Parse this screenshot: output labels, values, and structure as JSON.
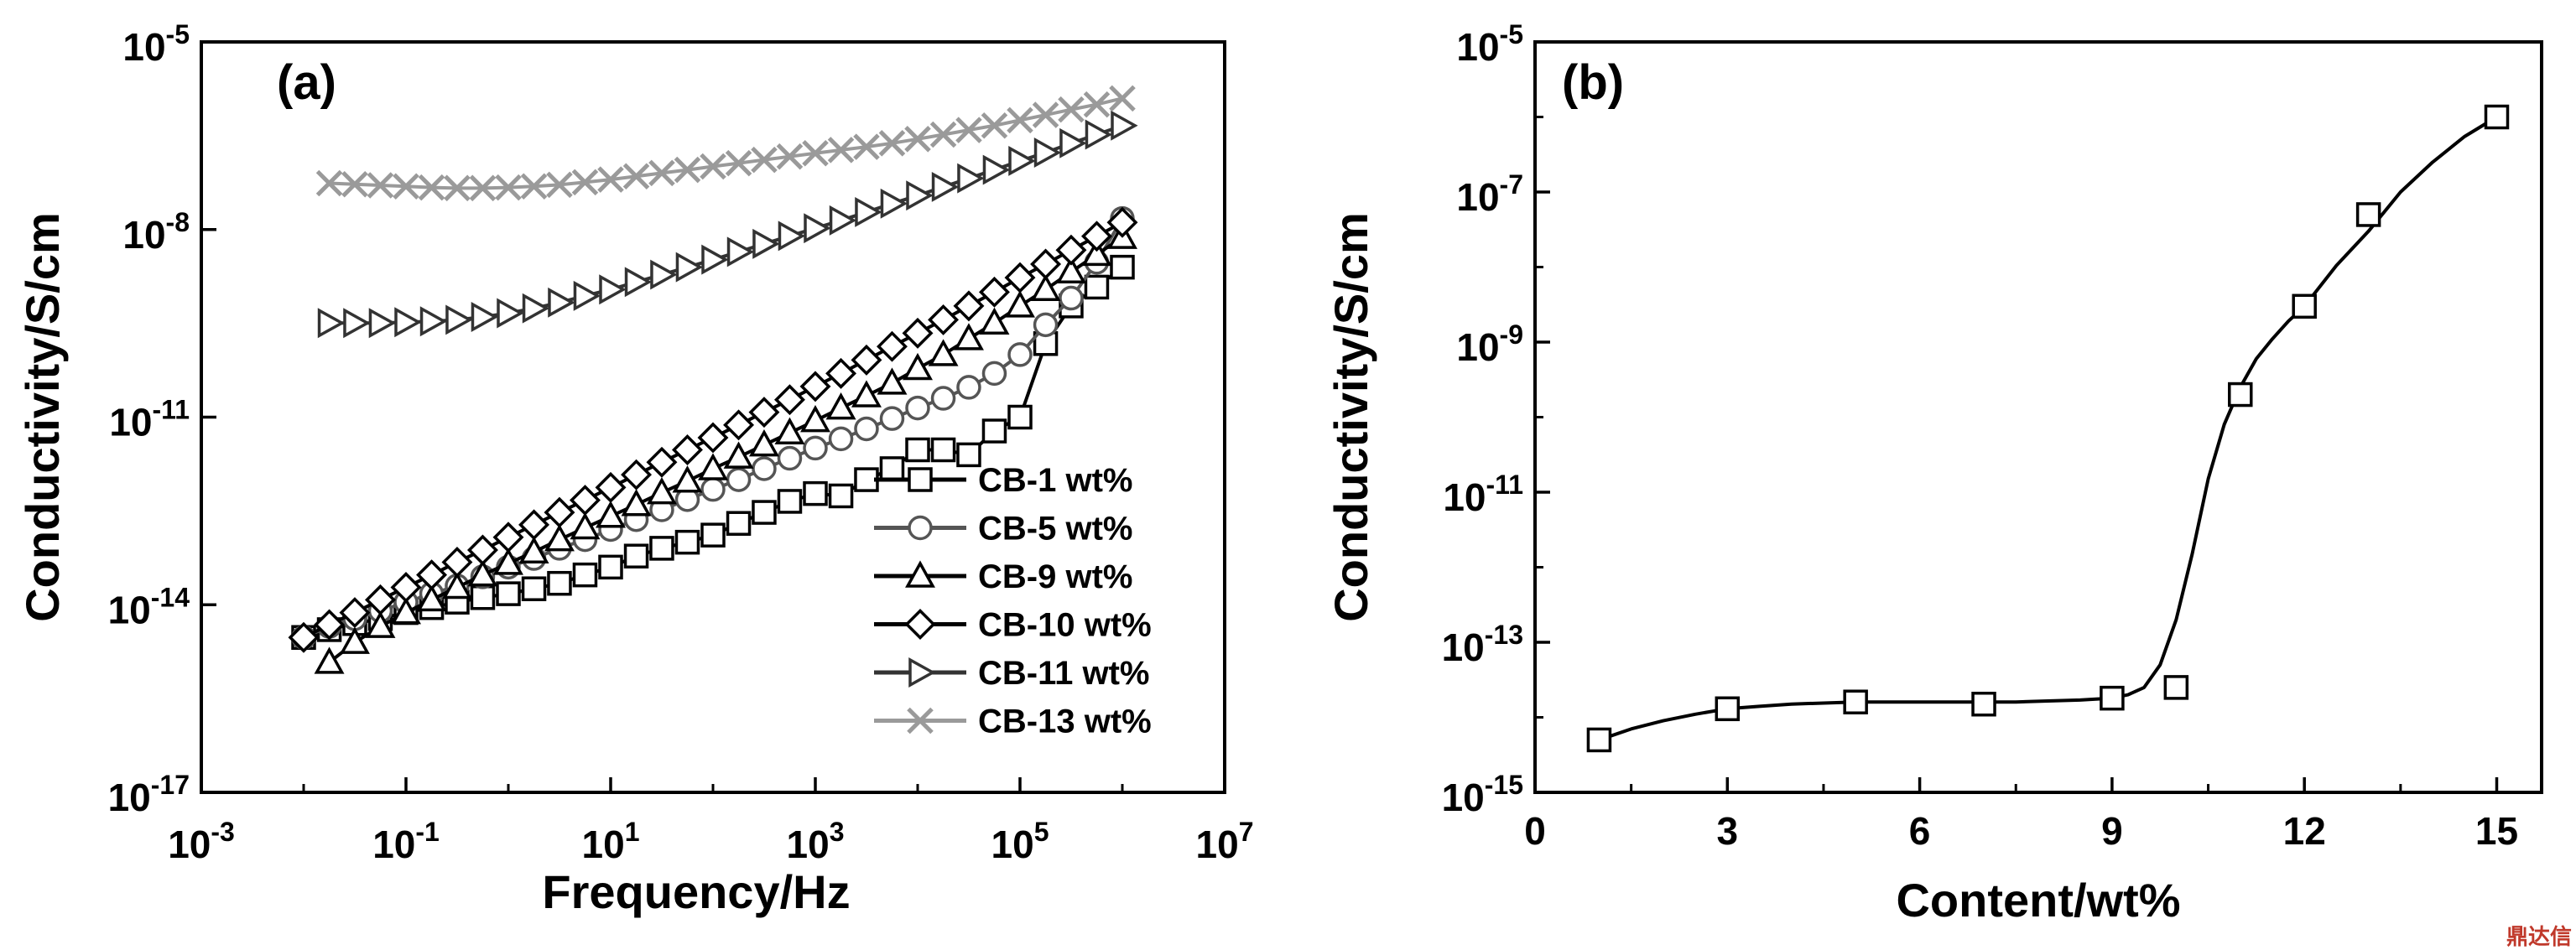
{
  "chart_data": [
    {
      "type": "line",
      "panel_label": "(a)",
      "xlabel": "Frequency/Hz",
      "ylabel": "Conductivity/S/cm",
      "x_scale": "log",
      "y_scale": "log",
      "xlim": [
        0.001,
        10000000
      ],
      "ylim": [
        1e-17,
        1e-05
      ],
      "x_ticks": [
        {
          "value": 0.001,
          "base": "10",
          "exp": "-3"
        },
        {
          "value": 0.1,
          "base": "10",
          "exp": "-1"
        },
        {
          "value": 10,
          "base": "10",
          "exp": "1"
        },
        {
          "value": 1000,
          "base": "10",
          "exp": "3"
        },
        {
          "value": 100000,
          "base": "10",
          "exp": "5"
        },
        {
          "value": 10000000,
          "base": "10",
          "exp": "7"
        }
      ],
      "y_ticks": [
        {
          "value": 1e-17,
          "base": "10",
          "exp": "-17"
        },
        {
          "value": 1e-14,
          "base": "10",
          "exp": "-14"
        },
        {
          "value": 1e-11,
          "base": "10",
          "exp": "-11"
        },
        {
          "value": 1e-08,
          "base": "10",
          "exp": "-8"
        },
        {
          "value": 1e-05,
          "base": "10",
          "exp": "-5"
        }
      ],
      "legend_position": "bottom-right",
      "series": [
        {
          "name": "CB-1 wt%",
          "marker": "square",
          "color": "#000000",
          "x": [
            0.01,
            0.0178,
            0.0316,
            0.0562,
            0.1,
            0.178,
            0.316,
            0.562,
            1,
            1.78,
            3.16,
            5.62,
            10,
            17.8,
            31.6,
            56.2,
            100,
            178,
            316,
            562,
            1000,
            1780,
            3160,
            5620,
            10000,
            17800,
            31600,
            56200,
            100000,
            178000,
            316000,
            562000,
            1000000
          ],
          "y": [
            3e-15,
            4e-15,
            5e-15,
            6e-15,
            7.5e-15,
            9e-15,
            1.1e-14,
            1.3e-14,
            1.5e-14,
            1.8e-14,
            2.2e-14,
            3e-14,
            4e-14,
            6e-14,
            8e-14,
            1e-13,
            1.3e-13,
            2e-13,
            3e-13,
            4.5e-13,
            6e-13,
            5.5e-13,
            1e-12,
            1.5e-12,
            3e-12,
            3e-12,
            2.5e-12,
            6e-12,
            1e-11,
            1.5e-10,
            6e-10,
            1.2e-09,
            2.5e-09
          ]
        },
        {
          "name": "CB-5 wt%",
          "marker": "circle",
          "color": "#555555",
          "x": [
            0.01,
            0.0178,
            0.0316,
            0.0562,
            0.1,
            0.178,
            0.316,
            0.562,
            1,
            1.78,
            3.16,
            5.62,
            10,
            17.8,
            31.6,
            56.2,
            100,
            178,
            316,
            562,
            1000,
            1780,
            3160,
            5620,
            10000,
            17800,
            31600,
            56200,
            100000,
            178000,
            316000,
            562000,
            1000000
          ],
          "y": [
            3e-15,
            4.5e-15,
            6e-15,
            8e-15,
            1.1e-14,
            1.5e-14,
            2e-14,
            2.8e-14,
            4e-14,
            5.5e-14,
            8e-14,
            1.1e-13,
            1.6e-13,
            2.3e-13,
            3.3e-13,
            4.8e-13,
            7e-13,
            1e-12,
            1.5e-12,
            2.2e-12,
            3.2e-12,
            4.5e-12,
            6.5e-12,
            9.5e-12,
            1.4e-11,
            2e-11,
            3e-11,
            5e-11,
            1e-10,
            3e-10,
            8e-10,
            3e-09,
            1.5e-08
          ]
        },
        {
          "name": "CB-9 wt%",
          "marker": "triangle-up",
          "color": "#000000",
          "x": [
            0.0178,
            0.0316,
            0.0562,
            0.1,
            0.178,
            0.316,
            0.562,
            1,
            1.78,
            3.16,
            5.62,
            10,
            17.8,
            31.6,
            56.2,
            100,
            178,
            316,
            562,
            1000,
            1780,
            3160,
            5620,
            10000,
            17800,
            31600,
            56200,
            100000,
            178000,
            316000,
            562000,
            1000000
          ],
          "y": [
            1.2e-15,
            2.5e-15,
            4.5e-15,
            7.5e-15,
            1.2e-14,
            1.9e-14,
            3e-14,
            4.6e-14,
            7e-14,
            1.1e-13,
            1.7e-13,
            2.6e-13,
            4e-13,
            6.2e-13,
            9.5e-13,
            1.5e-12,
            2.3e-12,
            3.6e-12,
            5.6e-12,
            8.8e-12,
            1.4e-11,
            2.2e-11,
            3.5e-11,
            6e-11,
            1e-10,
            1.8e-10,
            3.2e-10,
            6e-10,
            1.1e-09,
            2.1e-09,
            4e-09,
            7.5e-09
          ]
        },
        {
          "name": "CB-10 wt%",
          "marker": "diamond",
          "color": "#000000",
          "x": [
            0.01,
            0.0178,
            0.0316,
            0.0562,
            0.1,
            0.178,
            0.316,
            0.562,
            1,
            1.78,
            3.16,
            5.62,
            10,
            17.8,
            31.6,
            56.2,
            100,
            178,
            316,
            562,
            1000,
            1780,
            3160,
            5620,
            10000,
            17800,
            31600,
            56200,
            100000,
            178000,
            316000,
            562000,
            1000000
          ],
          "y": [
            3e-15,
            4.8e-15,
            7.5e-15,
            1.2e-14,
            1.9e-14,
            3e-14,
            4.8e-14,
            7.5e-14,
            1.2e-13,
            1.9e-13,
            3e-13,
            4.7e-13,
            7.5e-13,
            1.2e-12,
            1.9e-12,
            3e-12,
            4.7e-12,
            7.5e-12,
            1.2e-11,
            1.9e-11,
            3.1e-11,
            5e-11,
            8.2e-11,
            1.35e-10,
            2.2e-10,
            3.6e-10,
            6e-10,
            1e-09,
            1.7e-09,
            2.8e-09,
            4.7e-09,
            7.8e-09,
            1.3e-08
          ]
        },
        {
          "name": "CB-11 wt%",
          "marker": "triangle-right",
          "color": "#333333",
          "x": [
            0.0178,
            0.0316,
            0.0562,
            0.1,
            0.178,
            0.316,
            0.562,
            1,
            1.78,
            3.16,
            5.62,
            10,
            17.8,
            31.6,
            56.2,
            100,
            178,
            316,
            562,
            1000,
            1780,
            3160,
            5620,
            10000,
            17800,
            31600,
            56200,
            100000,
            178000,
            316000,
            562000,
            1000000
          ],
          "y": [
            3.2e-10,
            3.2e-10,
            3.2e-10,
            3.3e-10,
            3.4e-10,
            3.6e-10,
            4e-10,
            4.6e-10,
            5.5e-10,
            6.8e-10,
            8.7e-10,
            1.1e-09,
            1.45e-09,
            1.9e-09,
            2.5e-09,
            3.3e-09,
            4.4e-09,
            5.9e-09,
            7.9e-09,
            1.05e-08,
            1.4e-08,
            1.9e-08,
            2.6e-08,
            3.5e-08,
            4.8e-08,
            6.6e-08,
            9e-08,
            1.25e-07,
            1.7e-07,
            2.4e-07,
            3.3e-07,
            4.6e-07
          ]
        },
        {
          "name": "CB-13 wt%",
          "marker": "cross",
          "color": "#9a9a9a",
          "x": [
            0.0178,
            0.0316,
            0.0562,
            0.1,
            0.178,
            0.316,
            0.562,
            1,
            1.78,
            3.16,
            5.62,
            10,
            17.8,
            31.6,
            56.2,
            100,
            178,
            316,
            562,
            1000,
            1780,
            3160,
            5620,
            10000,
            17800,
            31600,
            56200,
            100000,
            178000,
            316000,
            562000,
            1000000
          ],
          "y": [
            5.5e-08,
            5.3e-08,
            5.1e-08,
            4.9e-08,
            4.7e-08,
            4.6e-08,
            4.6e-08,
            4.7e-08,
            4.9e-08,
            5.2e-08,
            5.7e-08,
            6.3e-08,
            7.1e-08,
            8e-08,
            9e-08,
            1.02e-07,
            1.15e-07,
            1.3e-07,
            1.47e-07,
            1.66e-07,
            1.87e-07,
            2.1e-07,
            2.4e-07,
            2.8e-07,
            3.3e-07,
            3.9e-07,
            4.6e-07,
            5.6e-07,
            6.8e-07,
            8.3e-07,
            1e-06,
            1.25e-06
          ]
        }
      ]
    },
    {
      "type": "line",
      "panel_label": "(b)",
      "xlabel": "Content/wt%",
      "ylabel": "Conductivity/S/cm",
      "x_scale": "linear",
      "y_scale": "log",
      "xlim": [
        0,
        15.7
      ],
      "ylim": [
        1e-15,
        1e-05
      ],
      "x_ticks": [
        0,
        3,
        6,
        9,
        12,
        15
      ],
      "y_ticks": [
        {
          "value": 1e-15,
          "base": "10",
          "exp": "-15"
        },
        {
          "value": 1e-13,
          "base": "10",
          "exp": "-13"
        },
        {
          "value": 1e-11,
          "base": "10",
          "exp": "-11"
        },
        {
          "value": 1e-09,
          "base": "10",
          "exp": "-9"
        },
        {
          "value": 1e-07,
          "base": "10",
          "exp": "-7"
        },
        {
          "value": 1e-05,
          "base": "10",
          "exp": "-5"
        }
      ],
      "series": [
        {
          "marker": "square",
          "color": "#000000",
          "x": [
            1,
            3,
            5,
            7,
            9,
            10,
            11,
            12,
            13,
            15
          ],
          "y": [
            5e-15,
            1.3e-14,
            1.6e-14,
            1.5e-14,
            1.8e-14,
            2.5e-14,
            2e-10,
            3e-09,
            5e-08,
            1e-06
          ],
          "fit_x": [
            1,
            1.5,
            2,
            2.5,
            3,
            3.5,
            4,
            4.5,
            5,
            5.5,
            6,
            6.5,
            7,
            7.5,
            8,
            8.5,
            9,
            9.25,
            9.5,
            9.75,
            10,
            10.25,
            10.5,
            10.75,
            11,
            11.25,
            11.5,
            11.75,
            12,
            12.5,
            13,
            13.5,
            14,
            14.5,
            15
          ],
          "fit_y": [
            5e-15,
            7e-15,
            9e-15,
            1.1e-14,
            1.3e-14,
            1.4e-14,
            1.5e-14,
            1.55e-14,
            1.6e-14,
            1.6e-14,
            1.6e-14,
            1.6e-14,
            1.6e-14,
            1.6e-14,
            1.65e-14,
            1.7e-14,
            1.8e-14,
            2e-14,
            2.5e-14,
            5e-14,
            2e-13,
            1.5e-12,
            1.5e-11,
            8e-11,
            2.5e-10,
            6e-10,
            1.1e-09,
            1.9e-09,
            3e-09,
            1.05e-08,
            3e-08,
            1e-07,
            2.5e-07,
            5.5e-07,
            1e-06
          ]
        }
      ]
    }
  ],
  "watermark": "鼎达信"
}
